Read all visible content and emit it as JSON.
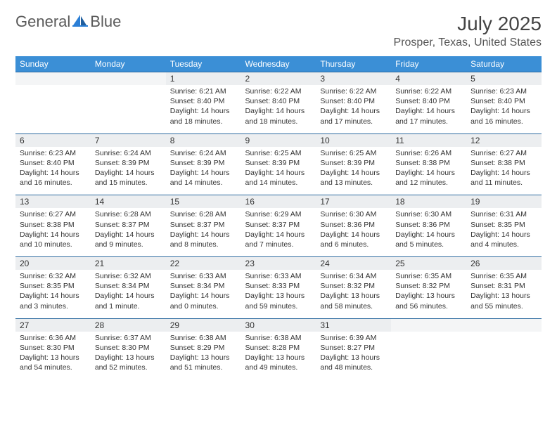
{
  "brand": {
    "word1": "General",
    "word2": "Blue"
  },
  "colors": {
    "header_bg": "#3b8fd6",
    "rule": "#2c6aa0",
    "daynum_bg": "#eceef0"
  },
  "title": "July 2025",
  "location": "Prosper, Texas, United States",
  "weekdays": [
    "Sunday",
    "Monday",
    "Tuesday",
    "Wednesday",
    "Thursday",
    "Friday",
    "Saturday"
  ],
  "weeks": [
    [
      {
        "blank": true
      },
      {
        "blank": true
      },
      {
        "num": "1",
        "sunrise": "Sunrise: 6:21 AM",
        "sunset": "Sunset: 8:40 PM",
        "day1": "Daylight: 14 hours",
        "day2": "and 18 minutes."
      },
      {
        "num": "2",
        "sunrise": "Sunrise: 6:22 AM",
        "sunset": "Sunset: 8:40 PM",
        "day1": "Daylight: 14 hours",
        "day2": "and 18 minutes."
      },
      {
        "num": "3",
        "sunrise": "Sunrise: 6:22 AM",
        "sunset": "Sunset: 8:40 PM",
        "day1": "Daylight: 14 hours",
        "day2": "and 17 minutes."
      },
      {
        "num": "4",
        "sunrise": "Sunrise: 6:22 AM",
        "sunset": "Sunset: 8:40 PM",
        "day1": "Daylight: 14 hours",
        "day2": "and 17 minutes."
      },
      {
        "num": "5",
        "sunrise": "Sunrise: 6:23 AM",
        "sunset": "Sunset: 8:40 PM",
        "day1": "Daylight: 14 hours",
        "day2": "and 16 minutes."
      }
    ],
    [
      {
        "num": "6",
        "sunrise": "Sunrise: 6:23 AM",
        "sunset": "Sunset: 8:40 PM",
        "day1": "Daylight: 14 hours",
        "day2": "and 16 minutes."
      },
      {
        "num": "7",
        "sunrise": "Sunrise: 6:24 AM",
        "sunset": "Sunset: 8:39 PM",
        "day1": "Daylight: 14 hours",
        "day2": "and 15 minutes."
      },
      {
        "num": "8",
        "sunrise": "Sunrise: 6:24 AM",
        "sunset": "Sunset: 8:39 PM",
        "day1": "Daylight: 14 hours",
        "day2": "and 14 minutes."
      },
      {
        "num": "9",
        "sunrise": "Sunrise: 6:25 AM",
        "sunset": "Sunset: 8:39 PM",
        "day1": "Daylight: 14 hours",
        "day2": "and 14 minutes."
      },
      {
        "num": "10",
        "sunrise": "Sunrise: 6:25 AM",
        "sunset": "Sunset: 8:39 PM",
        "day1": "Daylight: 14 hours",
        "day2": "and 13 minutes."
      },
      {
        "num": "11",
        "sunrise": "Sunrise: 6:26 AM",
        "sunset": "Sunset: 8:38 PM",
        "day1": "Daylight: 14 hours",
        "day2": "and 12 minutes."
      },
      {
        "num": "12",
        "sunrise": "Sunrise: 6:27 AM",
        "sunset": "Sunset: 8:38 PM",
        "day1": "Daylight: 14 hours",
        "day2": "and 11 minutes."
      }
    ],
    [
      {
        "num": "13",
        "sunrise": "Sunrise: 6:27 AM",
        "sunset": "Sunset: 8:38 PM",
        "day1": "Daylight: 14 hours",
        "day2": "and 10 minutes."
      },
      {
        "num": "14",
        "sunrise": "Sunrise: 6:28 AM",
        "sunset": "Sunset: 8:37 PM",
        "day1": "Daylight: 14 hours",
        "day2": "and 9 minutes."
      },
      {
        "num": "15",
        "sunrise": "Sunrise: 6:28 AM",
        "sunset": "Sunset: 8:37 PM",
        "day1": "Daylight: 14 hours",
        "day2": "and 8 minutes."
      },
      {
        "num": "16",
        "sunrise": "Sunrise: 6:29 AM",
        "sunset": "Sunset: 8:37 PM",
        "day1": "Daylight: 14 hours",
        "day2": "and 7 minutes."
      },
      {
        "num": "17",
        "sunrise": "Sunrise: 6:30 AM",
        "sunset": "Sunset: 8:36 PM",
        "day1": "Daylight: 14 hours",
        "day2": "and 6 minutes."
      },
      {
        "num": "18",
        "sunrise": "Sunrise: 6:30 AM",
        "sunset": "Sunset: 8:36 PM",
        "day1": "Daylight: 14 hours",
        "day2": "and 5 minutes."
      },
      {
        "num": "19",
        "sunrise": "Sunrise: 6:31 AM",
        "sunset": "Sunset: 8:35 PM",
        "day1": "Daylight: 14 hours",
        "day2": "and 4 minutes."
      }
    ],
    [
      {
        "num": "20",
        "sunrise": "Sunrise: 6:32 AM",
        "sunset": "Sunset: 8:35 PM",
        "day1": "Daylight: 14 hours",
        "day2": "and 3 minutes."
      },
      {
        "num": "21",
        "sunrise": "Sunrise: 6:32 AM",
        "sunset": "Sunset: 8:34 PM",
        "day1": "Daylight: 14 hours",
        "day2": "and 1 minute."
      },
      {
        "num": "22",
        "sunrise": "Sunrise: 6:33 AM",
        "sunset": "Sunset: 8:34 PM",
        "day1": "Daylight: 14 hours",
        "day2": "and 0 minutes."
      },
      {
        "num": "23",
        "sunrise": "Sunrise: 6:33 AM",
        "sunset": "Sunset: 8:33 PM",
        "day1": "Daylight: 13 hours",
        "day2": "and 59 minutes."
      },
      {
        "num": "24",
        "sunrise": "Sunrise: 6:34 AM",
        "sunset": "Sunset: 8:32 PM",
        "day1": "Daylight: 13 hours",
        "day2": "and 58 minutes."
      },
      {
        "num": "25",
        "sunrise": "Sunrise: 6:35 AM",
        "sunset": "Sunset: 8:32 PM",
        "day1": "Daylight: 13 hours",
        "day2": "and 56 minutes."
      },
      {
        "num": "26",
        "sunrise": "Sunrise: 6:35 AM",
        "sunset": "Sunset: 8:31 PM",
        "day1": "Daylight: 13 hours",
        "day2": "and 55 minutes."
      }
    ],
    [
      {
        "num": "27",
        "sunrise": "Sunrise: 6:36 AM",
        "sunset": "Sunset: 8:30 PM",
        "day1": "Daylight: 13 hours",
        "day2": "and 54 minutes."
      },
      {
        "num": "28",
        "sunrise": "Sunrise: 6:37 AM",
        "sunset": "Sunset: 8:30 PM",
        "day1": "Daylight: 13 hours",
        "day2": "and 52 minutes."
      },
      {
        "num": "29",
        "sunrise": "Sunrise: 6:38 AM",
        "sunset": "Sunset: 8:29 PM",
        "day1": "Daylight: 13 hours",
        "day2": "and 51 minutes."
      },
      {
        "num": "30",
        "sunrise": "Sunrise: 6:38 AM",
        "sunset": "Sunset: 8:28 PM",
        "day1": "Daylight: 13 hours",
        "day2": "and 49 minutes."
      },
      {
        "num": "31",
        "sunrise": "Sunrise: 6:39 AM",
        "sunset": "Sunset: 8:27 PM",
        "day1": "Daylight: 13 hours",
        "day2": "and 48 minutes."
      },
      {
        "blank": true
      },
      {
        "blank": true
      }
    ]
  ]
}
